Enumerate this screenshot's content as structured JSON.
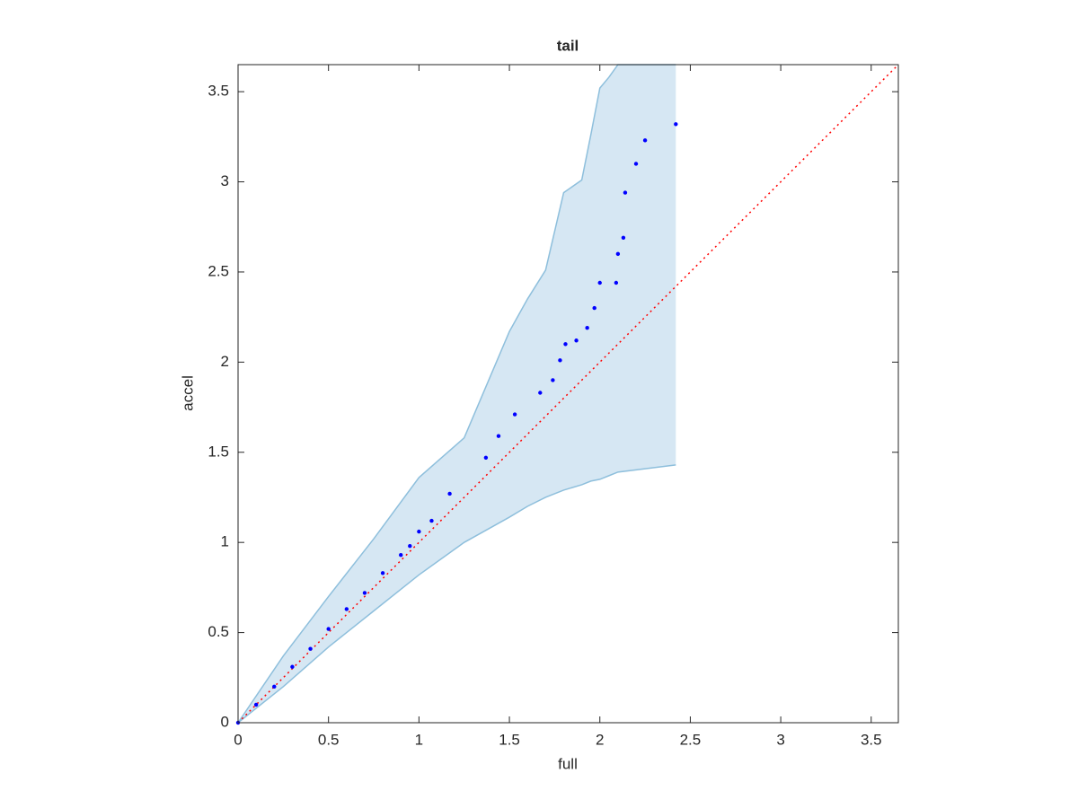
{
  "chart_data": {
    "type": "scatter",
    "title": "tail",
    "xlabel": "full",
    "ylabel": "accel",
    "x": [
      0,
      0.1,
      0.2,
      0.3,
      0.4,
      0.5,
      0.6,
      0.7,
      0.8,
      0.9,
      0.95,
      1.0,
      1.07,
      1.17,
      1.37,
      1.44,
      1.53,
      1.67,
      1.74,
      1.78,
      1.81,
      1.87,
      1.93,
      1.97,
      2.0,
      2.09,
      2.1,
      2.13,
      2.14,
      2.2,
      2.25,
      2.42
    ],
    "y": [
      0,
      0.1,
      0.2,
      0.31,
      0.41,
      0.52,
      0.63,
      0.72,
      0.83,
      0.93,
      0.98,
      1.06,
      1.12,
      1.27,
      1.47,
      1.59,
      1.71,
      1.83,
      1.9,
      2.01,
      2.1,
      2.12,
      2.19,
      2.3,
      2.44,
      2.44,
      2.6,
      2.69,
      2.94,
      3.1,
      3.23,
      3.32
    ],
    "color": "#0000ff",
    "band": {
      "x": [
        0,
        0.25,
        0.5,
        0.75,
        1,
        1.25,
        1.5,
        1.6,
        1.7,
        1.8,
        1.9,
        1.95,
        2.0,
        2.05,
        2.1,
        2.42
      ],
      "upper": [
        0,
        0.37,
        0.7,
        1.02,
        1.36,
        1.58,
        2.17,
        2.35,
        2.51,
        2.94,
        3.01,
        3.26,
        3.52,
        3.58,
        3.65,
        3.65
      ],
      "lower": [
        0,
        0.2,
        0.42,
        0.62,
        0.82,
        1.0,
        1.14,
        1.2,
        1.25,
        1.29,
        1.32,
        1.34,
        1.35,
        1.37,
        1.39,
        1.43
      ],
      "fill": "#d6e7f3",
      "edge": "#8ebfdc"
    },
    "reference": {
      "x": [
        0,
        3.65
      ],
      "y": [
        0,
        3.65
      ],
      "color": "#ff0000"
    },
    "xlim": [
      0,
      3.65
    ],
    "ylim": [
      0,
      3.65
    ],
    "xticks": [
      0,
      0.5,
      1,
      1.5,
      2,
      2.5,
      3,
      3.5
    ],
    "yticks": [
      0,
      0.5,
      1,
      1.5,
      2,
      2.5,
      3,
      3.5
    ]
  }
}
